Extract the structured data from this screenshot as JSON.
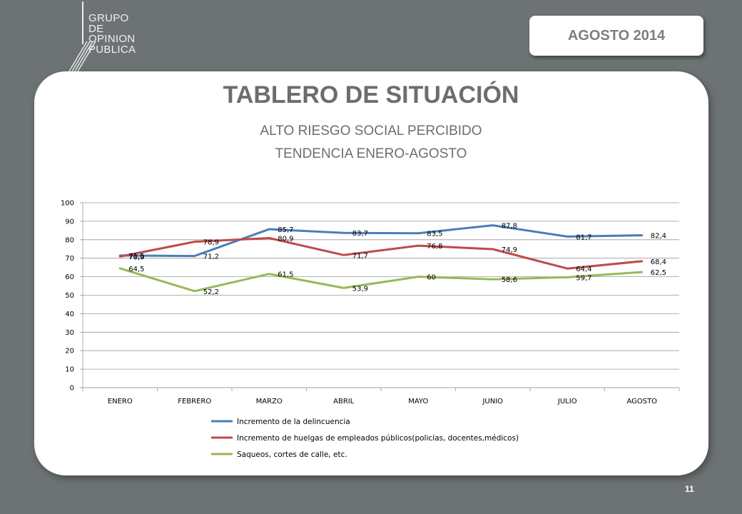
{
  "logo": {
    "lines": [
      "GRUPO",
      "DE",
      "OPINION",
      "PUBLICA"
    ]
  },
  "header": {
    "date": "AGOSTO  2014"
  },
  "card": {
    "title": "TABLERO DE SITUACIÓN",
    "subtitle1": "ALTO  RIESGO SOCIAL PERCIBIDO",
    "subtitle2": "TENDENCIA ENERO-AGOSTO"
  },
  "chart_data": {
    "type": "line",
    "categories": [
      "ENERO",
      "FEBRERO",
      "MARZO",
      "ABRIL",
      "MAYO",
      "JUNIO",
      "JULIO",
      "AGOSTO"
    ],
    "ylim": [
      0,
      100
    ],
    "yticks": [
      0,
      10,
      20,
      30,
      40,
      50,
      60,
      70,
      80,
      90,
      100
    ],
    "grid": true,
    "legend_position": "bottom",
    "series": [
      {
        "name": "Incremento de la delincuencia",
        "color": "#4a7ebb",
        "values": [
          71.5,
          71.2,
          85.7,
          83.7,
          83.5,
          87.8,
          81.7,
          82.4
        ],
        "labels": [
          "71,5",
          "71,2",
          "85,7",
          "83,7",
          "83,5",
          "87,8",
          "81,7",
          "82,4"
        ]
      },
      {
        "name": "Incremento de huelgas de empleados públicos(policías, docentes,médicos)",
        "color": "#be4b48",
        "values": [
          70.9,
          78.9,
          80.9,
          71.7,
          76.8,
          74.9,
          64.4,
          68.4
        ],
        "labels": [
          "70,9",
          "78,9",
          "80,9",
          "71,7",
          "76,8",
          "74,9",
          "64,4",
          "68,4"
        ]
      },
      {
        "name": "Saqueos, cortes de calle, etc.",
        "color": "#98b954",
        "values": [
          64.5,
          52.2,
          61.5,
          53.9,
          60,
          58.6,
          59.7,
          62.5
        ],
        "labels": [
          "64,5",
          "52,2",
          "61,5",
          "53,9",
          "60",
          "58,6",
          "59,7",
          "62,5"
        ]
      }
    ]
  },
  "footer": {
    "page": "11"
  }
}
